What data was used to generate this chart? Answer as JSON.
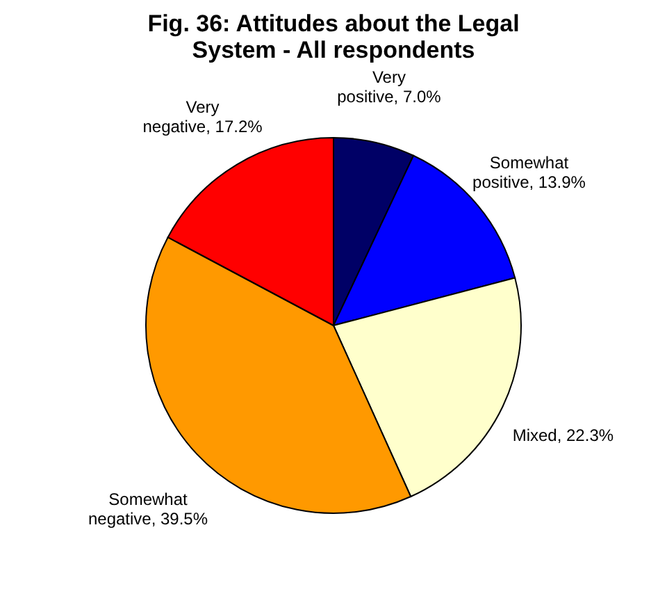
{
  "chart_data": {
    "type": "pie",
    "title": "Fig. 36: Attitudes about the Legal System - All respondents",
    "categories": [
      "Very positive",
      "Somewhat positive",
      "Mixed",
      "Somewhat negative",
      "Very negative"
    ],
    "values": [
      7.0,
      13.9,
      22.3,
      39.5,
      17.2
    ],
    "value_labels": [
      "7.0%",
      "13.9%",
      "22.3%",
      "39.5%",
      "17.2%"
    ],
    "colors": [
      "#000066",
      "#0000ff",
      "#ffffcc",
      "#ff9900",
      "#ff0000"
    ],
    "legend": false
  }
}
